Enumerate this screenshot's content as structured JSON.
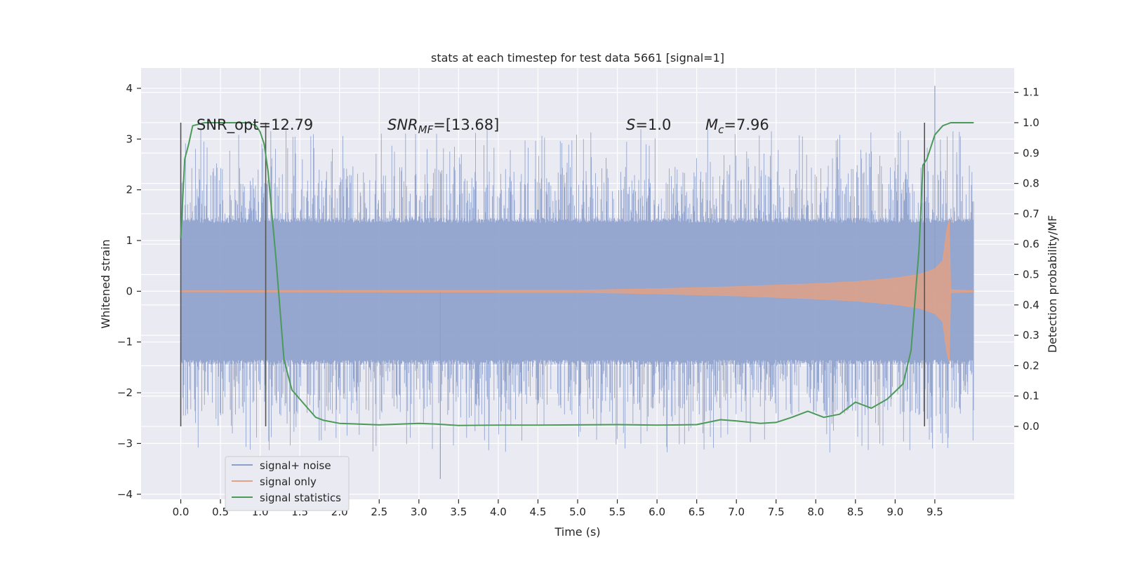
{
  "chart_data": {
    "type": "line",
    "title": "stats at each timestep for test data 5661 [signal=1]",
    "xlabel": "Time (s)",
    "ylabel": "Whitened strain",
    "y2label": "Detection probability/MF",
    "xlim": [
      -0.5,
      10.5
    ],
    "ylim": [
      -4.1,
      4.4
    ],
    "y2lim": [
      -0.24,
      1.18
    ],
    "x_ticks": [
      "0.0",
      "0.5",
      "1.0",
      "1.5",
      "2.0",
      "2.5",
      "3.0",
      "3.5",
      "4.0",
      "4.5",
      "5.0",
      "5.5",
      "6.0",
      "6.5",
      "7.0",
      "7.5",
      "8.0",
      "8.5",
      "9.0",
      "9.5"
    ],
    "y_ticks": [
      "4",
      "3",
      "2",
      "1",
      "0",
      "−1",
      "−2",
      "−3",
      "−4"
    ],
    "y2_ticks": [
      "1.1",
      "1.0",
      "0.9",
      "0.8",
      "0.7",
      "0.6",
      "0.5",
      "0.4",
      "0.3",
      "0.2",
      "0.1",
      "0.0"
    ],
    "grid": true,
    "legend_position": "lower-left",
    "annotations": {
      "snr_opt": "SNR_opt=12.79",
      "snr_mf_main": "SNR",
      "snr_mf_sub": "MF",
      "snr_mf_value": "=[13.68]",
      "s_main": "S",
      "s_value": "=1.0",
      "mc_main": "M",
      "mc_sub": "c",
      "mc_value": "=7.96"
    },
    "series": [
      {
        "name": "signal+ noise",
        "color": "#8c9fcb",
        "axis": "left",
        "x_range": [
          0.0,
          9.99
        ],
        "envelope_core": 1.35,
        "envelope_peak_max": 4.05,
        "envelope_peak_min": -3.7
      },
      {
        "name": "signal only",
        "color": "#e1a186",
        "axis": "left",
        "x": [
          0.0,
          5.0,
          6.0,
          7.0,
          8.0,
          8.5,
          9.0,
          9.3,
          9.5,
          9.6,
          9.65,
          9.68,
          9.7,
          9.99
        ],
        "amplitude": [
          0.01,
          0.02,
          0.05,
          0.09,
          0.15,
          0.19,
          0.26,
          0.33,
          0.44,
          0.6,
          1.2,
          1.4,
          0.03,
          0.01
        ]
      },
      {
        "name": "signal statistics",
        "color": "#4c9a5a",
        "axis": "right",
        "x": [
          0.0,
          0.05,
          0.1,
          0.15,
          0.3,
          0.5,
          0.7,
          0.85,
          0.95,
          1.0,
          1.05,
          1.1,
          1.2,
          1.3,
          1.4,
          1.5,
          1.6,
          1.7,
          1.8,
          2.0,
          2.5,
          3.0,
          3.2,
          3.5,
          4.0,
          4.5,
          5.0,
          5.5,
          6.0,
          6.3,
          6.5,
          6.8,
          7.0,
          7.3,
          7.5,
          7.7,
          7.9,
          8.1,
          8.3,
          8.5,
          8.7,
          8.9,
          9.1,
          9.2,
          9.3,
          9.35,
          9.4,
          9.5,
          9.6,
          9.7,
          9.99
        ],
        "y": [
          0.62,
          0.88,
          0.93,
          0.99,
          1.0,
          1.0,
          1.0,
          1.0,
          0.99,
          0.97,
          0.93,
          0.84,
          0.55,
          0.22,
          0.12,
          0.09,
          0.06,
          0.03,
          0.02,
          0.01,
          0.005,
          0.01,
          0.008,
          0.003,
          0.004,
          0.004,
          0.005,
          0.006,
          0.004,
          0.005,
          0.006,
          0.022,
          0.018,
          0.01,
          0.013,
          0.03,
          0.05,
          0.03,
          0.04,
          0.08,
          0.06,
          0.09,
          0.14,
          0.25,
          0.58,
          0.86,
          0.88,
          0.96,
          0.99,
          1.0,
          1.0
        ]
      }
    ],
    "vertical_markers": [
      0.0,
      1.07,
      9.37
    ]
  }
}
